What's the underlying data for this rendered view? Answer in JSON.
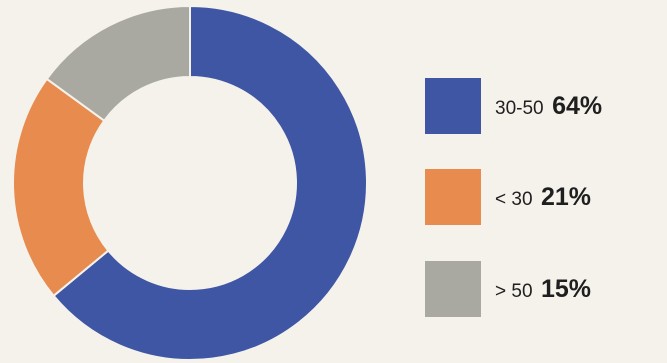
{
  "chart_data": {
    "type": "pie",
    "donut": true,
    "categories": [
      "30-50",
      "< 30",
      "> 50"
    ],
    "values": [
      64,
      21,
      15
    ],
    "value_labels": [
      "64%",
      "21%",
      "15%"
    ],
    "colors": [
      "#3f56a4",
      "#e88b4e",
      "#a9a9a2"
    ],
    "start_angle_deg": 0,
    "direction": "clockwise",
    "legend_placement": "right",
    "title": ""
  },
  "legend": {
    "items": [
      {
        "label": "30-50",
        "value": "64%",
        "color": "#3f56a4"
      },
      {
        "label": "< 30",
        "value": "21%",
        "color": "#e88b4e"
      },
      {
        "label": "> 50",
        "value": "15%",
        "color": "#a9a9a2"
      }
    ]
  }
}
